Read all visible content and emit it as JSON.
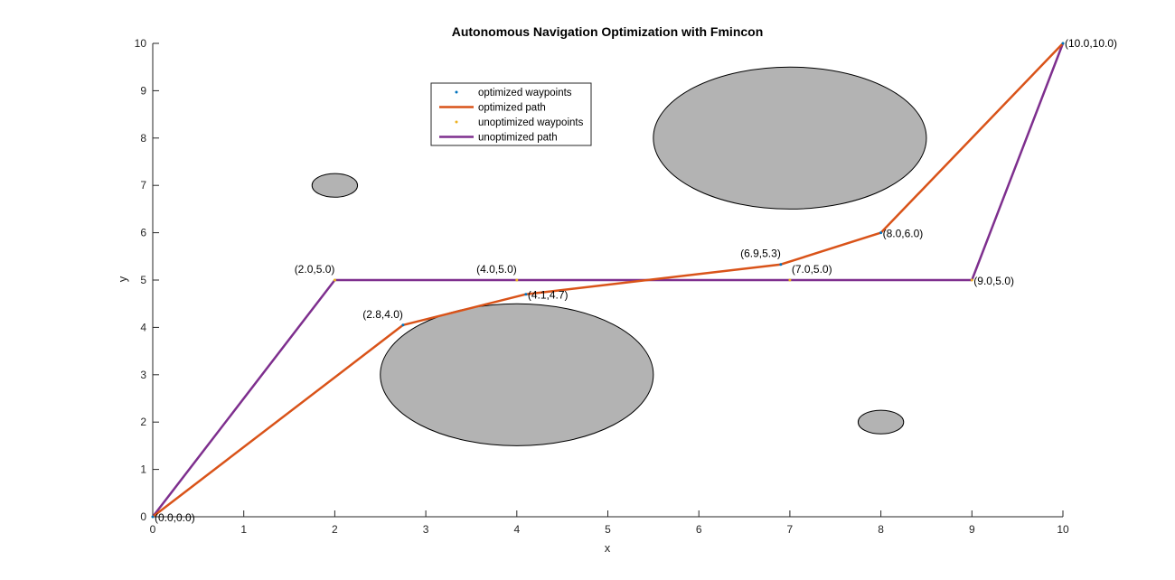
{
  "chart_data": {
    "type": "line",
    "title": "Autonomous Navigation Optimization with Fmincon",
    "xlabel": "x",
    "ylabel": "y",
    "xlim": [
      0,
      10
    ],
    "ylim": [
      0,
      10
    ],
    "xticks": [
      0,
      1,
      2,
      3,
      4,
      5,
      6,
      7,
      8,
      9,
      10
    ],
    "yticks": [
      0,
      1,
      2,
      3,
      4,
      5,
      6,
      7,
      8,
      9,
      10
    ],
    "grid": false,
    "legend_position": "top-center",
    "obstacles": [
      {
        "center": [
          2,
          7
        ],
        "radius_x": 0.25,
        "radius_y": 0.25
      },
      {
        "center": [
          7,
          8
        ],
        "radius_x": 1.5,
        "radius_y": 1.5
      },
      {
        "center": [
          4,
          3
        ],
        "radius_x": 1.5,
        "radius_y": 1.5
      },
      {
        "center": [
          8,
          2
        ],
        "radius_x": 0.25,
        "radius_y": 0.25
      }
    ],
    "obstacle_fill": "#b3b3b3",
    "series": [
      {
        "name": "optimized waypoints",
        "kind": "points",
        "color": "#0072BD",
        "x": [
          0,
          2.75,
          4.1,
          6.9,
          8.0,
          10
        ],
        "y": [
          0,
          4.05,
          4.7,
          5.33,
          6.0,
          10
        ]
      },
      {
        "name": "optimized path",
        "kind": "line",
        "color": "#D95319",
        "x": [
          0,
          2.75,
          4.1,
          6.9,
          8.0,
          10
        ],
        "y": [
          0,
          4.05,
          4.7,
          5.33,
          6.0,
          10
        ]
      },
      {
        "name": "unoptimized waypoints",
        "kind": "points",
        "color": "#EDB120",
        "x": [
          0,
          2,
          4,
          7,
          9,
          10
        ],
        "y": [
          0,
          5,
          5,
          5,
          5,
          10
        ]
      },
      {
        "name": "unoptimized path",
        "kind": "line",
        "color": "#7E2F8E",
        "x": [
          0,
          2,
          4,
          7,
          9,
          10
        ],
        "y": [
          0,
          5,
          5,
          5,
          5,
          10
        ]
      }
    ],
    "annotations": [
      {
        "text": "(0.0,0.0)",
        "x": 0,
        "y": 0,
        "anchor": "start",
        "dy": 1
      },
      {
        "text": "(2.0,5.0)",
        "x": 2,
        "y": 5,
        "anchor": "end",
        "dy": -1
      },
      {
        "text": "(4.0,5.0)",
        "x": 4,
        "y": 5,
        "anchor": "end",
        "dy": -1
      },
      {
        "text": "(7.0,5.0)",
        "x": 7,
        "y": 5,
        "anchor": "start",
        "dy": -1
      },
      {
        "text": "(9.0,5.0)",
        "x": 9,
        "y": 5,
        "anchor": "start",
        "dy": 1
      },
      {
        "text": "(10.0,10.0)",
        "x": 10,
        "y": 10,
        "anchor": "start",
        "dy": 0
      },
      {
        "text": "(2.8,4.0)",
        "x": 2.75,
        "y": 4.05,
        "anchor": "end",
        "dy": -1
      },
      {
        "text": "(4.1,4.7)",
        "x": 4.1,
        "y": 4.7,
        "anchor": "start",
        "dy": 1
      },
      {
        "text": "(6.9,5.3)",
        "x": 6.9,
        "y": 5.33,
        "anchor": "end",
        "dy": -1
      },
      {
        "text": "(8.0,6.0)",
        "x": 8.0,
        "y": 6.0,
        "anchor": "start",
        "dy": 1
      }
    ]
  }
}
